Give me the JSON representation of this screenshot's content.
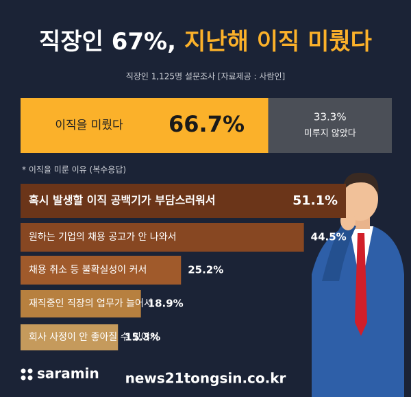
{
  "title_parts": [
    "직장인 67%,",
    "지난해 이직 미뤘다"
  ],
  "subtitle": "직장인 1,125명 설문조사 [자료제공 : 사람인]",
  "chart_data": [
    {
      "type": "split",
      "categories": [
        "이직을 미뤘다",
        "미루지 않았다"
      ],
      "values": [
        66.7,
        33.3
      ],
      "value_labels": [
        "66.7%",
        "33.3%"
      ],
      "colors": [
        "#fbb12a",
        "#4b4f57"
      ]
    },
    {
      "type": "hbar",
      "note": "* 이직을 미룬 이유 (복수응답)",
      "categories": [
        "혹시 발생할 이직 공백기가 부담스러워서",
        "원하는 기업의 채용 공고가 안 나와서",
        "채용 취소 등 불확실성이 커서",
        "재직중인 직장의 업무가 늘어서",
        "회사 사정이 안 좋아질 수 있어서"
      ],
      "values": [
        51.1,
        44.5,
        25.2,
        18.9,
        15.3
      ],
      "value_labels": [
        "51.1%",
        "44.5%",
        "25.2%",
        "18.9%",
        "15.3%"
      ],
      "colors": [
        "#6b3519",
        "#874722",
        "#a05a2b",
        "#b7803f",
        "#c59a5c"
      ]
    }
  ],
  "footer": {
    "logo": "saramin",
    "source": "news21tongsin.co.kr"
  }
}
